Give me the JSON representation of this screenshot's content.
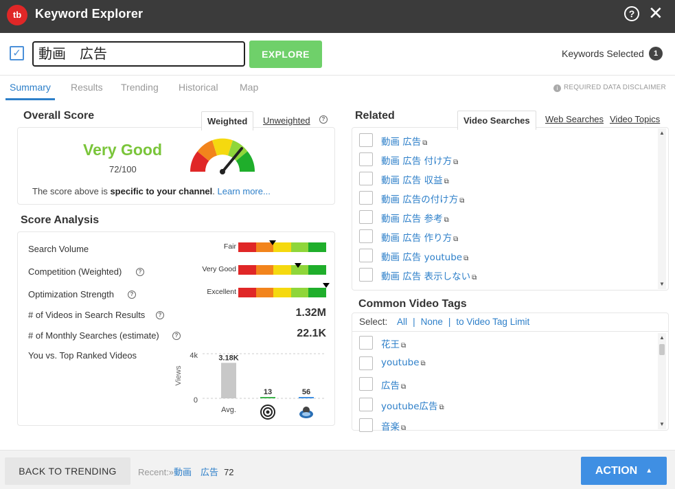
{
  "window": {
    "title": "Keyword Explorer",
    "logo_text": "tb"
  },
  "search": {
    "value": "動画　広告",
    "explore_label": "EXPLORE",
    "keywords_selected_label": "Keywords Selected",
    "keywords_selected_count": "1"
  },
  "tabs": [
    {
      "label": "Summary",
      "active": true
    },
    {
      "label": "Results",
      "active": false
    },
    {
      "label": "Trending",
      "active": false
    },
    {
      "label": "Historical",
      "active": false
    },
    {
      "label": "Map",
      "active": false
    }
  ],
  "disclaimer": "REQUIRED DATA DISCLAIMER",
  "overall_score": {
    "title": "Overall Score",
    "weighted_label": "Weighted",
    "unweighted_label": "Unweighted",
    "rating": "Very Good",
    "score_text": "72/100",
    "score_value": 72,
    "note_prefix": "The score above is ",
    "note_bold": "specific to your channel",
    "note_suffix": ". ",
    "learn_more": "Learn more..."
  },
  "score_analysis": {
    "title": "Score Analysis",
    "rows": [
      {
        "label": "Search Volume",
        "meter_label": "Fair",
        "level": 0.39
      },
      {
        "label": "Competition (Weighted)",
        "meter_label": "Very Good",
        "level": 0.68
      },
      {
        "label": "Optimization Strength",
        "meter_label": "Excellent",
        "level": 1.0
      }
    ],
    "videos_label": "# of Videos in Search Results",
    "videos_value": "1.32M",
    "monthly_label": "# of Monthly Searches (estimate)",
    "monthly_value": "22.1K",
    "vs_label": "You vs. Top Ranked Videos"
  },
  "chart_data": {
    "type": "bar",
    "ylabel": "Views",
    "ytick_top": "4k",
    "ytick_bottom": "0",
    "ylim": [
      0,
      4000
    ],
    "categories": [
      "Avg.",
      "target",
      "channel"
    ],
    "values": [
      3180,
      13,
      56
    ],
    "data_labels": [
      "3.18K",
      "13",
      "56"
    ],
    "colors": [
      "#c8c8c8",
      "#3bb34a",
      "#3f8fe3"
    ]
  },
  "related": {
    "title": "Related",
    "tabs": [
      "Video Searches",
      "Web Searches",
      "Video Topics"
    ],
    "items": [
      "動画 広告",
      "動画 広告 付け方",
      "動画 広告 収益",
      "動画 広告の付け方",
      "動画 広告 参考",
      "動画 広告 作り方",
      "動画 広告 youtube",
      "動画 広告 表示しない"
    ]
  },
  "tags": {
    "title": "Common Video Tags",
    "select_label": "Select:",
    "all": "All",
    "none": "None",
    "limit": "to Video Tag Limit",
    "items": [
      "花王",
      "youtube",
      "広告",
      "youtube広告",
      "音楽"
    ]
  },
  "footer": {
    "back_label": "BACK TO TRENDING",
    "recent_label": "Recent:»",
    "recent_keyword": "動画　広告",
    "recent_score": "72",
    "action_label": "ACTION"
  },
  "colors": {
    "accent": "#2d7fc9",
    "explore_green": "#6fd06a",
    "rating_green": "#7ac53a",
    "meter": [
      "#e02727",
      "#f2841c",
      "#f5d90f",
      "#8fd63a",
      "#1fae2b"
    ]
  }
}
